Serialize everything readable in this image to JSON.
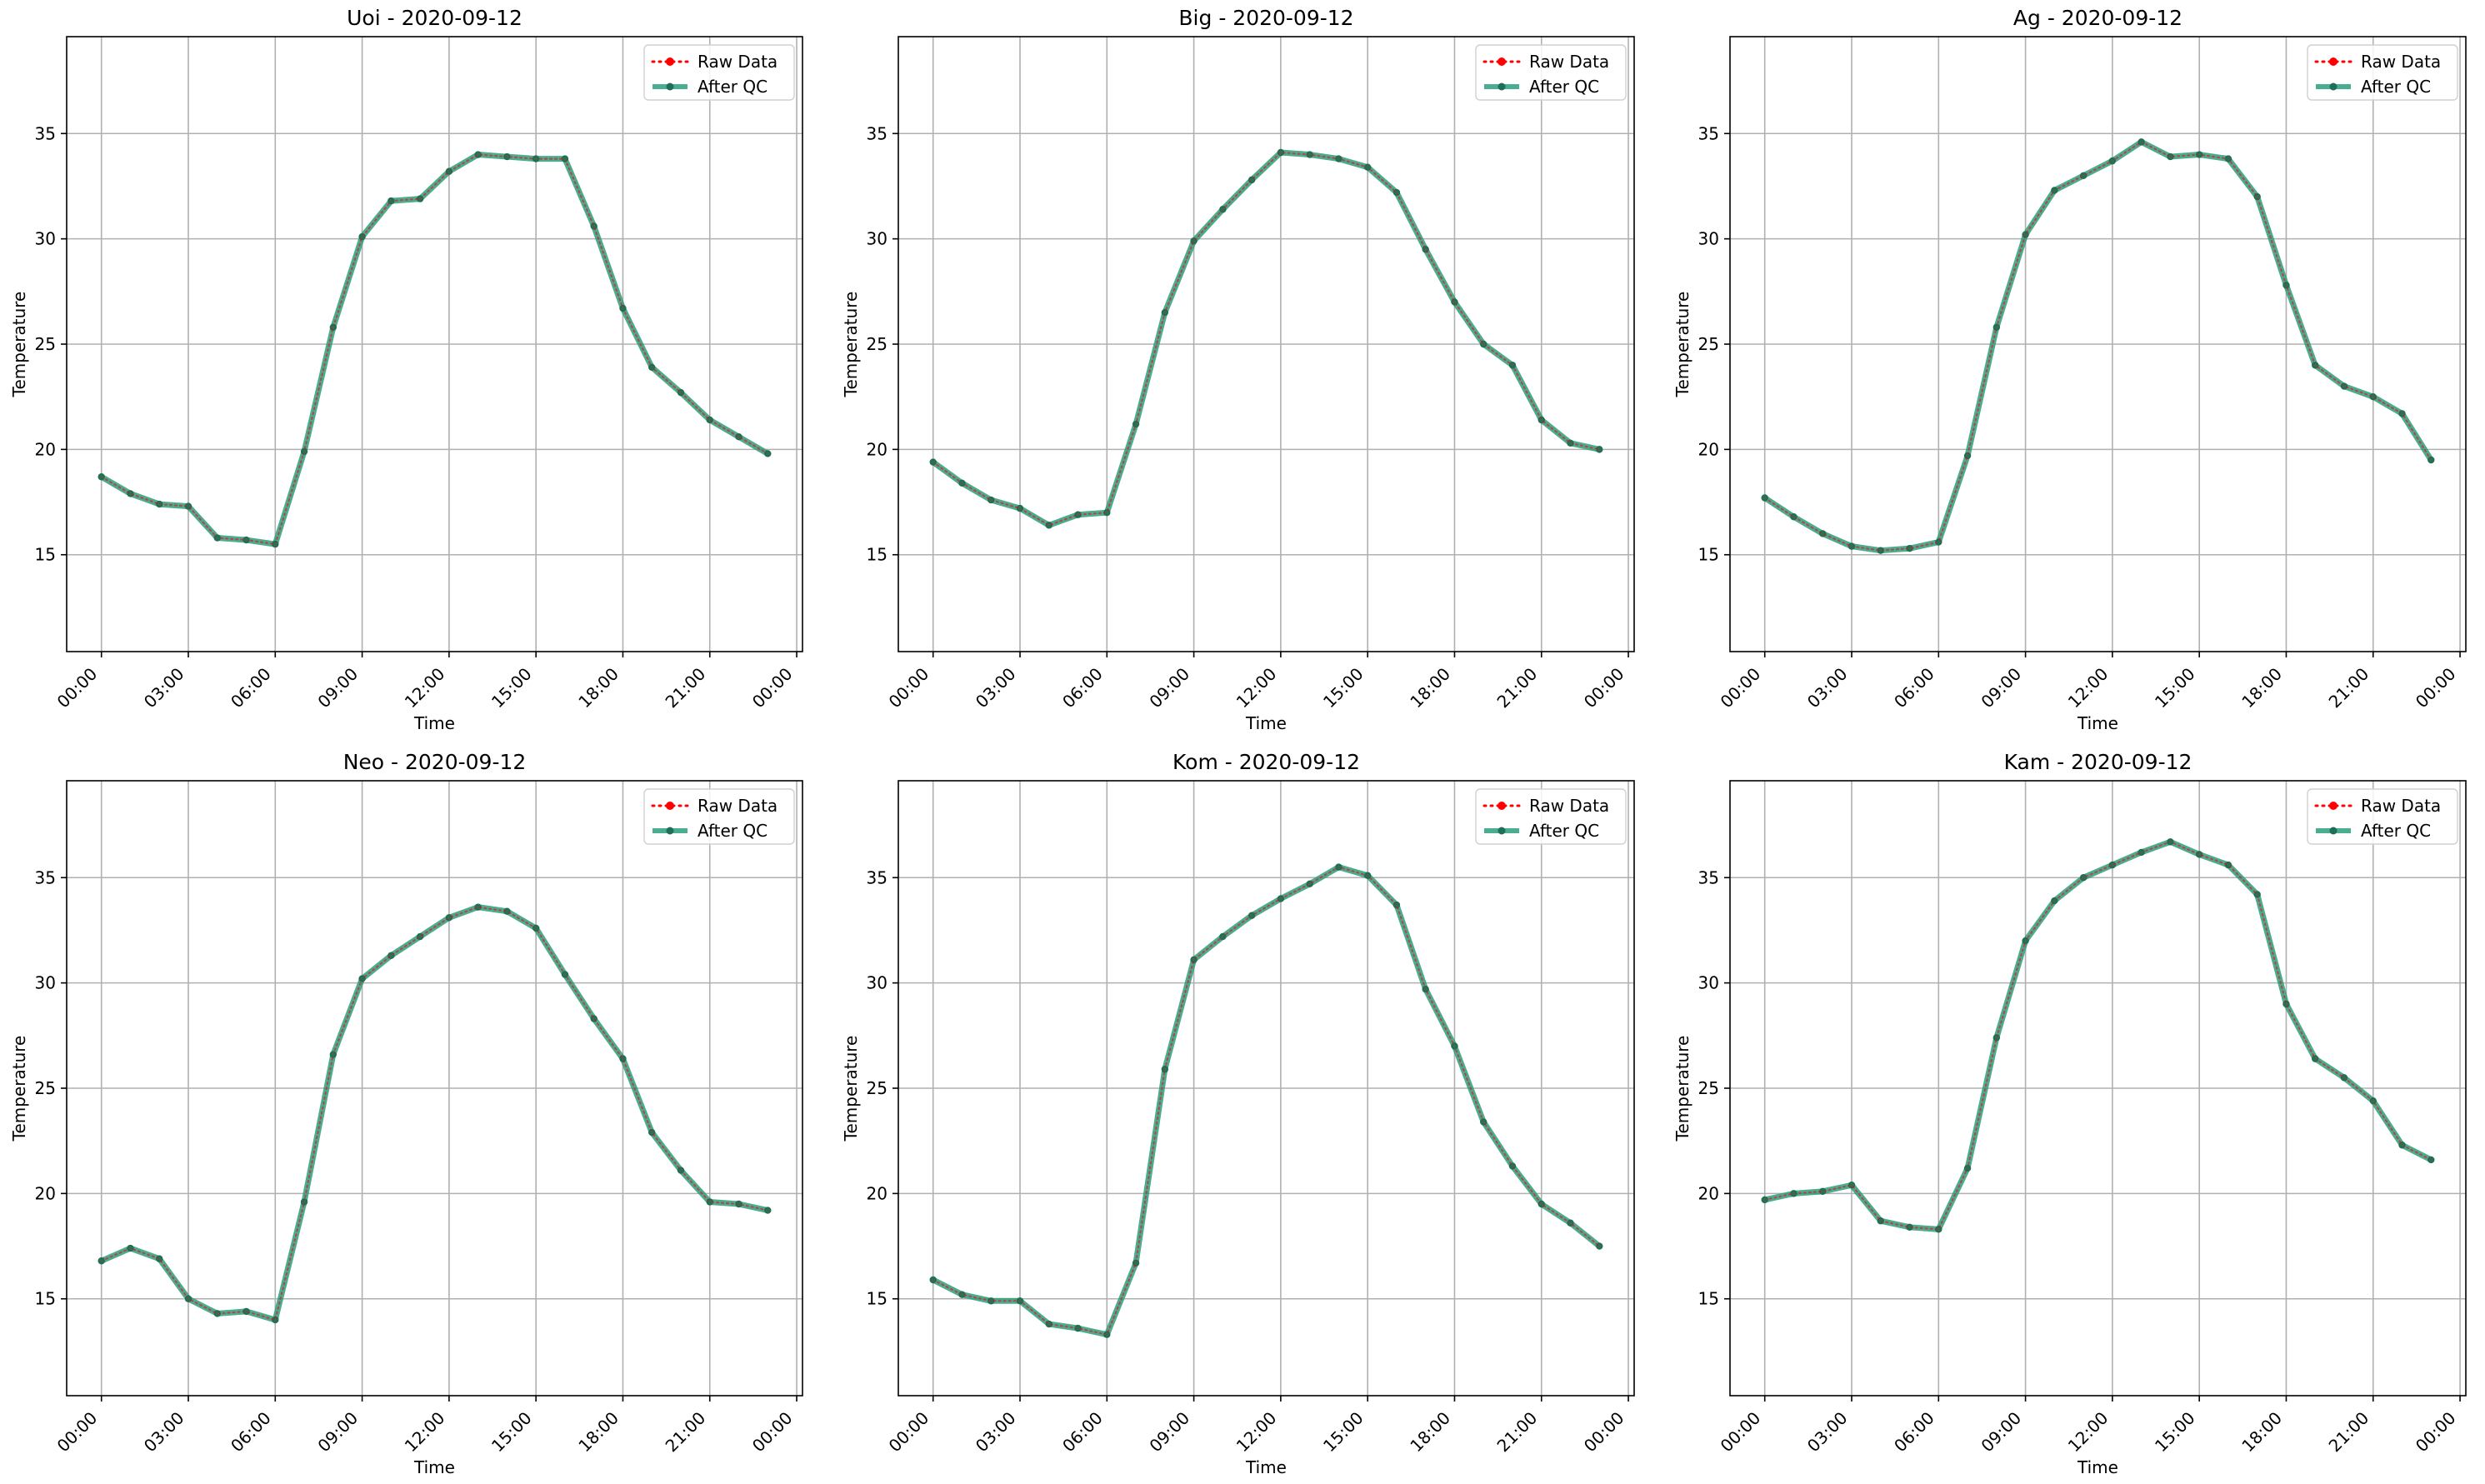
{
  "figure": {
    "background": "#ffffff",
    "axes_edge_color": "#000000",
    "grid_color": "#b0b0b0"
  },
  "legend": {
    "placement": "upper-right",
    "entries": [
      {
        "label": "Raw Data",
        "color": "#ff0000",
        "style": "dotted",
        "marker": "dot"
      },
      {
        "label": "After QC",
        "color": "#2a9d7c",
        "style": "solid",
        "marker": "dot"
      }
    ]
  },
  "chart_data": [
    {
      "type": "line",
      "title": "Uoi - 2020-09-12",
      "xlabel": "Time",
      "ylabel": "Temperature",
      "xlim": [
        -1.2,
        24.2
      ],
      "ylim": [
        10.4,
        39.6
      ],
      "grid": true,
      "x_ticks": [
        0,
        3,
        6,
        9,
        12,
        15,
        18,
        21,
        24
      ],
      "x_tick_labels": [
        "00:00",
        "03:00",
        "06:00",
        "09:00",
        "12:00",
        "15:00",
        "18:00",
        "21:00",
        "00:00"
      ],
      "y_ticks": [
        15,
        20,
        25,
        30,
        35
      ],
      "y_tick_labels": [
        "15",
        "20",
        "25",
        "30",
        "35"
      ],
      "x": [
        0,
        1,
        2,
        3,
        4,
        5,
        6,
        7,
        8,
        9,
        10,
        11,
        12,
        13,
        14,
        15,
        16,
        17,
        18,
        19,
        20,
        21,
        22,
        23
      ],
      "series": [
        {
          "name": "Raw Data",
          "values": [
            18.7,
            17.9,
            17.4,
            17.3,
            15.8,
            15.7,
            15.5,
            19.9,
            25.8,
            30.1,
            31.8,
            31.9,
            33.2,
            34.0,
            33.9,
            33.8,
            33.8,
            30.6,
            26.7,
            23.9,
            22.7,
            21.4,
            20.6,
            19.8
          ]
        },
        {
          "name": "After QC",
          "values": [
            18.7,
            17.9,
            17.4,
            17.3,
            15.8,
            15.7,
            15.5,
            19.9,
            25.8,
            30.1,
            31.8,
            31.9,
            33.2,
            34.0,
            33.9,
            33.8,
            33.8,
            30.6,
            26.7,
            23.9,
            22.7,
            21.4,
            20.6,
            19.8
          ]
        }
      ]
    },
    {
      "type": "line",
      "title": "Big - 2020-09-12",
      "xlabel": "Time",
      "ylabel": "Temperature",
      "xlim": [
        -1.2,
        24.2
      ],
      "ylim": [
        10.4,
        39.6
      ],
      "grid": true,
      "x_ticks": [
        0,
        3,
        6,
        9,
        12,
        15,
        18,
        21,
        24
      ],
      "x_tick_labels": [
        "00:00",
        "03:00",
        "06:00",
        "09:00",
        "12:00",
        "15:00",
        "18:00",
        "21:00",
        "00:00"
      ],
      "y_ticks": [
        15,
        20,
        25,
        30,
        35
      ],
      "y_tick_labels": [
        "15",
        "20",
        "25",
        "30",
        "35"
      ],
      "x": [
        0,
        1,
        2,
        3,
        4,
        5,
        6,
        7,
        8,
        9,
        10,
        11,
        12,
        13,
        14,
        15,
        16,
        17,
        18,
        19,
        20,
        21,
        22,
        23
      ],
      "series": [
        {
          "name": "Raw Data",
          "values": [
            19.4,
            18.4,
            17.6,
            17.2,
            16.4,
            16.9,
            17.0,
            21.2,
            26.5,
            29.9,
            31.4,
            32.8,
            34.1,
            34.0,
            33.8,
            33.4,
            32.2,
            29.5,
            27.0,
            25.0,
            24.0,
            21.4,
            20.3,
            20.0
          ]
        },
        {
          "name": "After QC",
          "values": [
            19.4,
            18.4,
            17.6,
            17.2,
            16.4,
            16.9,
            17.0,
            21.2,
            26.5,
            29.9,
            31.4,
            32.8,
            34.1,
            34.0,
            33.8,
            33.4,
            32.2,
            29.5,
            27.0,
            25.0,
            24.0,
            21.4,
            20.3,
            20.0
          ]
        }
      ]
    },
    {
      "type": "line",
      "title": "Ag - 2020-09-12",
      "xlabel": "Time",
      "ylabel": "Temperature",
      "xlim": [
        -1.2,
        24.2
      ],
      "ylim": [
        10.4,
        39.6
      ],
      "grid": true,
      "x_ticks": [
        0,
        3,
        6,
        9,
        12,
        15,
        18,
        21,
        24
      ],
      "x_tick_labels": [
        "00:00",
        "03:00",
        "06:00",
        "09:00",
        "12:00",
        "15:00",
        "18:00",
        "21:00",
        "00:00"
      ],
      "y_ticks": [
        15,
        20,
        25,
        30,
        35
      ],
      "y_tick_labels": [
        "15",
        "20",
        "25",
        "30",
        "35"
      ],
      "x": [
        0,
        1,
        2,
        3,
        4,
        5,
        6,
        7,
        8,
        9,
        10,
        11,
        12,
        13,
        14,
        15,
        16,
        17,
        18,
        19,
        20,
        21,
        22,
        23
      ],
      "series": [
        {
          "name": "Raw Data",
          "values": [
            17.7,
            16.8,
            16.0,
            15.4,
            15.2,
            15.3,
            15.6,
            19.7,
            25.8,
            30.2,
            32.3,
            33.0,
            33.7,
            34.6,
            33.9,
            34.0,
            33.8,
            32.0,
            27.8,
            24.0,
            23.0,
            22.5,
            21.7,
            19.5
          ]
        },
        {
          "name": "After QC",
          "values": [
            17.7,
            16.8,
            16.0,
            15.4,
            15.2,
            15.3,
            15.6,
            19.7,
            25.8,
            30.2,
            32.3,
            33.0,
            33.7,
            34.6,
            33.9,
            34.0,
            33.8,
            32.0,
            27.8,
            24.0,
            23.0,
            22.5,
            21.7,
            19.5
          ]
        }
      ]
    },
    {
      "type": "line",
      "title": "Neo - 2020-09-12",
      "xlabel": "Time",
      "ylabel": "Temperature",
      "xlim": [
        -1.2,
        24.2
      ],
      "ylim": [
        10.4,
        39.6
      ],
      "grid": true,
      "x_ticks": [
        0,
        3,
        6,
        9,
        12,
        15,
        18,
        21,
        24
      ],
      "x_tick_labels": [
        "00:00",
        "03:00",
        "06:00",
        "09:00",
        "12:00",
        "15:00",
        "18:00",
        "21:00",
        "00:00"
      ],
      "y_ticks": [
        15,
        20,
        25,
        30,
        35
      ],
      "y_tick_labels": [
        "15",
        "20",
        "25",
        "30",
        "35"
      ],
      "x": [
        0,
        1,
        2,
        3,
        4,
        5,
        6,
        7,
        8,
        9,
        10,
        11,
        12,
        13,
        14,
        15,
        16,
        17,
        18,
        19,
        20,
        21,
        22,
        23
      ],
      "series": [
        {
          "name": "Raw Data",
          "values": [
            16.8,
            17.4,
            16.9,
            15.0,
            14.3,
            14.4,
            14.0,
            19.6,
            26.6,
            30.2,
            31.3,
            32.2,
            33.1,
            33.6,
            33.4,
            32.6,
            30.4,
            28.3,
            26.4,
            22.9,
            21.1,
            19.6,
            19.5,
            19.2
          ]
        },
        {
          "name": "After QC",
          "values": [
            16.8,
            17.4,
            16.9,
            15.0,
            14.3,
            14.4,
            14.0,
            19.6,
            26.6,
            30.2,
            31.3,
            32.2,
            33.1,
            33.6,
            33.4,
            32.6,
            30.4,
            28.3,
            26.4,
            22.9,
            21.1,
            19.6,
            19.5,
            19.2
          ]
        }
      ]
    },
    {
      "type": "line",
      "title": "Kom - 2020-09-12",
      "xlabel": "Time",
      "ylabel": "Temperature",
      "xlim": [
        -1.2,
        24.2
      ],
      "ylim": [
        10.4,
        39.6
      ],
      "grid": true,
      "x_ticks": [
        0,
        3,
        6,
        9,
        12,
        15,
        18,
        21,
        24
      ],
      "x_tick_labels": [
        "00:00",
        "03:00",
        "06:00",
        "09:00",
        "12:00",
        "15:00",
        "18:00",
        "21:00",
        "00:00"
      ],
      "y_ticks": [
        15,
        20,
        25,
        30,
        35
      ],
      "y_tick_labels": [
        "15",
        "20",
        "25",
        "30",
        "35"
      ],
      "x": [
        0,
        1,
        2,
        3,
        4,
        5,
        6,
        7,
        8,
        9,
        10,
        11,
        12,
        13,
        14,
        15,
        16,
        17,
        18,
        19,
        20,
        21,
        22,
        23
      ],
      "series": [
        {
          "name": "Raw Data",
          "values": [
            15.9,
            15.2,
            14.9,
            14.9,
            13.8,
            13.6,
            13.3,
            16.7,
            25.9,
            31.1,
            32.2,
            33.2,
            34.0,
            34.7,
            35.5,
            35.1,
            33.7,
            29.7,
            27.0,
            23.4,
            21.3,
            19.5,
            18.6,
            17.5
          ]
        },
        {
          "name": "After QC",
          "values": [
            15.9,
            15.2,
            14.9,
            14.9,
            13.8,
            13.6,
            13.3,
            16.7,
            25.9,
            31.1,
            32.2,
            33.2,
            34.0,
            34.7,
            35.5,
            35.1,
            33.7,
            29.7,
            27.0,
            23.4,
            21.3,
            19.5,
            18.6,
            17.5
          ]
        }
      ]
    },
    {
      "type": "line",
      "title": "Kam - 2020-09-12",
      "xlabel": "Time",
      "ylabel": "Temperature",
      "xlim": [
        -1.2,
        24.2
      ],
      "ylim": [
        10.4,
        39.6
      ],
      "grid": true,
      "x_ticks": [
        0,
        3,
        6,
        9,
        12,
        15,
        18,
        21,
        24
      ],
      "x_tick_labels": [
        "00:00",
        "03:00",
        "06:00",
        "09:00",
        "12:00",
        "15:00",
        "18:00",
        "21:00",
        "00:00"
      ],
      "y_ticks": [
        15,
        20,
        25,
        30,
        35
      ],
      "y_tick_labels": [
        "15",
        "20",
        "25",
        "30",
        "35"
      ],
      "x": [
        0,
        1,
        2,
        3,
        4,
        5,
        6,
        7,
        8,
        9,
        10,
        11,
        12,
        13,
        14,
        15,
        16,
        17,
        18,
        19,
        20,
        21,
        22,
        23
      ],
      "series": [
        {
          "name": "Raw Data",
          "values": [
            19.7,
            20.0,
            20.1,
            20.4,
            18.7,
            18.4,
            18.3,
            21.2,
            27.4,
            32.0,
            33.9,
            35.0,
            35.6,
            36.2,
            36.7,
            36.1,
            35.6,
            34.2,
            29.0,
            26.4,
            25.5,
            24.4,
            22.3,
            21.6
          ]
        },
        {
          "name": "After QC",
          "values": [
            19.7,
            20.0,
            20.1,
            20.4,
            18.7,
            18.4,
            18.3,
            21.2,
            27.4,
            32.0,
            33.9,
            35.0,
            35.6,
            36.2,
            36.7,
            36.1,
            35.6,
            34.2,
            29.0,
            26.4,
            25.5,
            24.4,
            22.3,
            21.6
          ]
        }
      ]
    }
  ]
}
